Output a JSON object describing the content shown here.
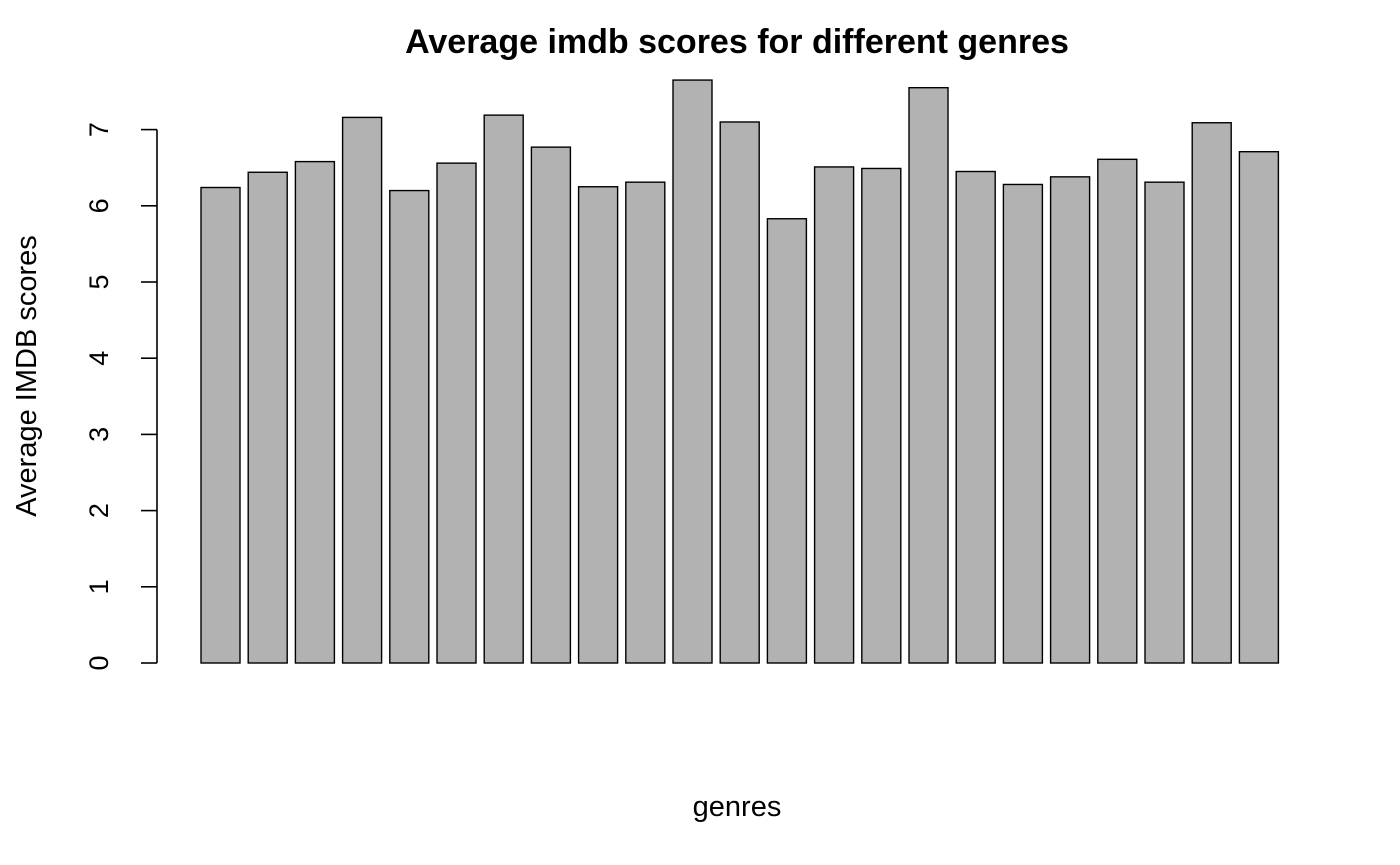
{
  "chart_data": {
    "type": "bar",
    "title": "Average imdb scores for different genres",
    "xlabel": "genres",
    "ylabel": "Average IMDB scores",
    "ylim": [
      0,
      7.7
    ],
    "yticks": [
      0,
      1,
      2,
      3,
      4,
      5,
      6,
      7
    ],
    "ytick_labels": [
      "0",
      "1",
      "2",
      "3",
      "4",
      "5",
      "6",
      "7"
    ],
    "values": [
      6.24,
      6.44,
      6.58,
      7.16,
      6.2,
      6.56,
      7.19,
      6.77,
      6.25,
      6.31,
      7.65,
      7.1,
      5.83,
      6.51,
      6.49,
      7.55,
      6.45,
      6.28,
      6.38,
      6.61,
      6.31,
      7.09,
      6.71
    ],
    "grid": false,
    "legend": "none",
    "colors": {
      "bar_fill": "#b2b2b2",
      "bar_stroke": "#000000",
      "axis": "#000000",
      "background": "#ffffff"
    }
  }
}
